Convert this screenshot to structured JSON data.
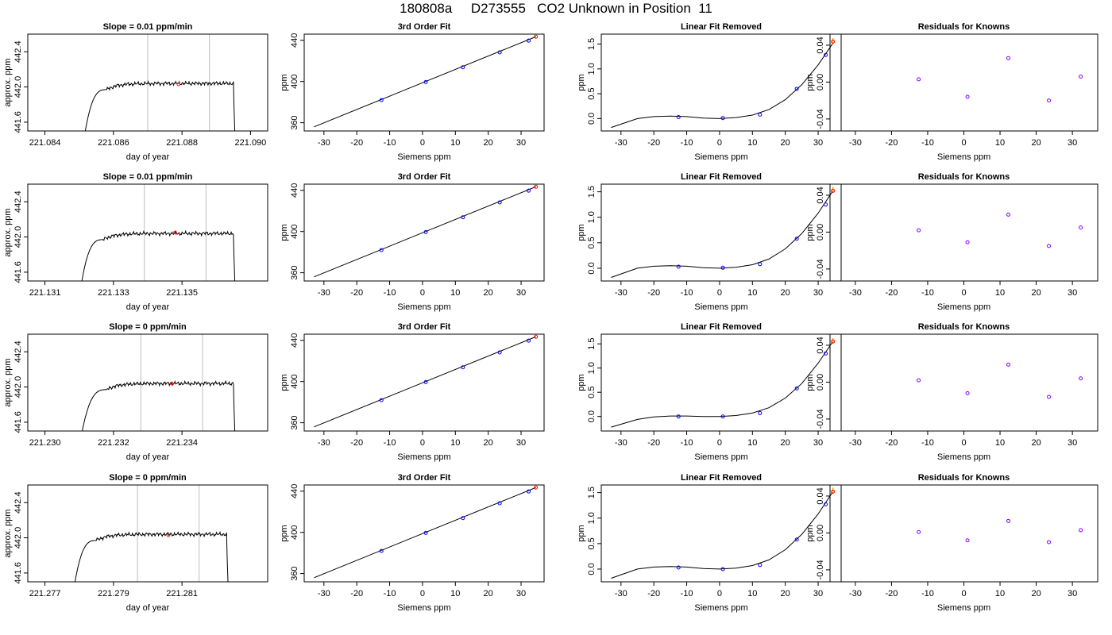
{
  "figure": {
    "title": "180808a     D273555   CO2 Unknown in Position  11"
  },
  "colors": {
    "known_point": "#0000ff",
    "unknown_point": "#ff0000",
    "range_point": "#ffa500",
    "residual_point": "#8000ff",
    "vline": "#bebebe",
    "line": "#000000"
  },
  "chart_data": [
    {
      "type": "line",
      "title": "Slope =  0.01  ppm/min",
      "xlabel": "day of year",
      "ylabel": "approx. ppm",
      "xlim": [
        221.0835,
        221.0905
      ],
      "ylim": [
        441.5,
        442.6
      ],
      "xticks": [
        221.084,
        221.086,
        221.088,
        221.09
      ],
      "xticklabels": [
        "221.084",
        "221.086",
        "221.088",
        "221.090"
      ],
      "yticks": [
        441.6,
        442.0,
        442.4
      ],
      "yticklabels": [
        "441.6",
        "442.0",
        "442.4"
      ],
      "trace": {
        "start": 221.0851,
        "rise_end": 221.0858,
        "end": 221.0895,
        "level": 442.04,
        "base": 441.3
      },
      "vlines": [
        221.087,
        221.0888
      ],
      "mean_point": {
        "x": 221.0879,
        "y": 442.03
      }
    },
    {
      "type": "scatter",
      "title": "3rd Order Fit",
      "xlabel": "Siemens ppm",
      "ylabel": "ppm",
      "xlim": [
        -36,
        37
      ],
      "ylim": [
        352,
        446
      ],
      "xticks": [
        -30,
        -20,
        -10,
        0,
        10,
        20,
        30
      ],
      "xticklabels": [
        "-30",
        "-20",
        "-10",
        "0",
        "10",
        "20",
        "30"
      ],
      "yticks": [
        360,
        400,
        440
      ],
      "yticklabels": [
        "360",
        "400",
        "440"
      ],
      "fit": {
        "x0": -33,
        "x1": 34.5,
        "y0": 356,
        "y1": 443.5
      },
      "known": {
        "x": [
          -12.5,
          1,
          12.3,
          23.5,
          32.3
        ],
        "y": [
          382,
          399.5,
          413.8,
          428.3,
          439.7
        ]
      },
      "unknown": {
        "x": [
          34.5
        ],
        "y": [
          443.5
        ]
      }
    },
    {
      "type": "scatter",
      "title": "Linear Fit Removed",
      "xlabel": "Siemens ppm",
      "ylabel": "ppm",
      "xlim": [
        -36,
        37
      ],
      "ylim": [
        -0.25,
        1.7
      ],
      "xticks": [
        -30,
        -20,
        -10,
        0,
        10,
        20,
        30
      ],
      "xticklabels": [
        "-30",
        "-20",
        "-10",
        "0",
        "10",
        "20",
        "30"
      ],
      "yticks": [
        0,
        0.5,
        1.0,
        1.5
      ],
      "yticklabels": [
        "0.0",
        "0.5",
        "1.0",
        "1.5"
      ],
      "curve": {
        "x": [
          -33,
          -25,
          -20,
          -15,
          -10,
          -5,
          0,
          5,
          10,
          15,
          20,
          25,
          30,
          34.5
        ],
        "y": [
          -0.18,
          0.0,
          0.04,
          0.05,
          0.04,
          0.01,
          0.0,
          0.02,
          0.07,
          0.18,
          0.38,
          0.68,
          1.08,
          1.52
        ]
      },
      "known": {
        "x": [
          -12.5,
          1,
          12.3,
          23.5,
          32.3
        ],
        "y": [
          0.03,
          0.01,
          0.08,
          0.6,
          1.28
        ]
      },
      "unknown": {
        "x": [
          34.5
        ],
        "y": [
          1.55
        ]
      },
      "unknown_range": {
        "x": 34.5,
        "y0": 1.5,
        "y1": 1.62
      }
    },
    {
      "type": "scatter",
      "title": "Residuals for Knowns",
      "xlabel": "Siemens ppm",
      "ylabel": "ppm",
      "xlim": [
        -37,
        37
      ],
      "ylim": [
        -0.053,
        0.052
      ],
      "xticks": [
        -30,
        -20,
        -10,
        0,
        10,
        20,
        30
      ],
      "xticklabels": [
        "-30",
        "-20",
        "-10",
        "0",
        "10",
        "20",
        "30"
      ],
      "yticks": [
        -0.04,
        0,
        0.04
      ],
      "yticklabels": [
        "-0.04",
        "0.00",
        "0.04"
      ],
      "known": {
        "x": [
          -12.5,
          1,
          12.3,
          23.5,
          32.3
        ],
        "y": [
          0.003,
          -0.016,
          0.026,
          -0.02,
          0.006
        ]
      }
    },
    {
      "type": "line",
      "title": "Slope =  0.01  ppm/min",
      "xlabel": "day of year",
      "ylabel": "approx. ppm",
      "xlim": [
        221.1305,
        221.1375
      ],
      "ylim": [
        441.5,
        442.6
      ],
      "xticks": [
        221.131,
        221.133,
        221.135
      ],
      "xticklabels": [
        "221.131",
        "221.133",
        "221.135"
      ],
      "yticks": [
        441.6,
        442.0,
        442.4
      ],
      "yticklabels": [
        "441.6",
        "442.0",
        "442.4"
      ],
      "trace": {
        "start": 221.132,
        "rise_end": 221.1327,
        "end": 221.1365,
        "level": 442.04,
        "base": 441.3
      },
      "vlines": [
        221.1339,
        221.1357
      ],
      "mean_point": {
        "x": 221.1348,
        "y": 442.05
      }
    },
    {
      "type": "scatter",
      "title": "3rd Order Fit",
      "xlabel": "Siemens ppm",
      "ylabel": "ppm",
      "xlim": [
        -36,
        37
      ],
      "ylim": [
        352,
        446
      ],
      "xticks": [
        -30,
        -20,
        -10,
        0,
        10,
        20,
        30
      ],
      "xticklabels": [
        "-30",
        "-20",
        "-10",
        "0",
        "10",
        "20",
        "30"
      ],
      "yticks": [
        360,
        400,
        440
      ],
      "yticklabels": [
        "360",
        "400",
        "440"
      ],
      "fit": {
        "x0": -33,
        "x1": 34.5,
        "y0": 356,
        "y1": 443.5
      },
      "known": {
        "x": [
          -12.5,
          1,
          12.3,
          23.5,
          32.3
        ],
        "y": [
          382,
          399.5,
          413.8,
          428.3,
          439.7
        ]
      },
      "unknown": {
        "x": [
          34.5
        ],
        "y": [
          443.5
        ]
      }
    },
    {
      "type": "scatter",
      "title": "Linear Fit Removed",
      "xlabel": "Siemens ppm",
      "ylabel": "ppm",
      "xlim": [
        -36,
        37
      ],
      "ylim": [
        -0.25,
        1.65
      ],
      "xticks": [
        -30,
        -20,
        -10,
        0,
        10,
        20,
        30
      ],
      "xticklabels": [
        "-30",
        "-20",
        "-10",
        "0",
        "10",
        "20",
        "30"
      ],
      "yticks": [
        0,
        0.5,
        1.0,
        1.5
      ],
      "yticklabels": [
        "0.0",
        "0.5",
        "1.0",
        "1.5"
      ],
      "curve": {
        "x": [
          -33,
          -25,
          -20,
          -15,
          -10,
          -5,
          0,
          5,
          10,
          15,
          20,
          25,
          30,
          34.5
        ],
        "y": [
          -0.18,
          0.0,
          0.04,
          0.05,
          0.04,
          0.01,
          0.0,
          0.02,
          0.07,
          0.18,
          0.38,
          0.68,
          1.08,
          1.52
        ]
      },
      "known": {
        "x": [
          -12.5,
          1,
          12.3,
          23.5,
          32.3
        ],
        "y": [
          0.03,
          0.01,
          0.08,
          0.58,
          1.25
        ]
      },
      "unknown": {
        "x": [
          34.5
        ],
        "y": [
          1.52
        ]
      },
      "unknown_range": {
        "x": 34.5,
        "y0": 1.48,
        "y1": 1.6
      }
    },
    {
      "type": "scatter",
      "title": "Residuals for Knowns",
      "xlabel": "Siemens ppm",
      "ylabel": "ppm",
      "xlim": [
        -37,
        37
      ],
      "ylim": [
        -0.053,
        0.052
      ],
      "xticks": [
        -30,
        -20,
        -10,
        0,
        10,
        20,
        30
      ],
      "xticklabels": [
        "-30",
        "-20",
        "-10",
        "0",
        "10",
        "20",
        "30"
      ],
      "yticks": [
        -0.04,
        0,
        0.04
      ],
      "yticklabels": [
        "-0.04",
        "0.00",
        "0.04"
      ],
      "known": {
        "x": [
          -12.5,
          1,
          12.3,
          23.5,
          32.3
        ],
        "y": [
          0.002,
          -0.011,
          0.019,
          -0.015,
          0.005
        ]
      }
    },
    {
      "type": "line",
      "title": "Slope =  0  ppm/min",
      "xlabel": "day of year",
      "ylabel": "approx. ppm",
      "xlim": [
        221.2295,
        221.2365
      ],
      "ylim": [
        441.5,
        442.6
      ],
      "xticks": [
        221.23,
        221.232,
        221.234
      ],
      "xticklabels": [
        "221.230",
        "221.232",
        "221.234"
      ],
      "yticks": [
        441.6,
        442.0,
        442.4
      ],
      "yticklabels": [
        "441.6",
        "442.0",
        "442.4"
      ],
      "trace": {
        "start": 221.231,
        "rise_end": 221.2318,
        "end": 221.2355,
        "level": 442.04,
        "base": 441.3
      },
      "vlines": [
        221.2328,
        221.2346
      ],
      "mean_point": {
        "x": 221.2337,
        "y": 442.04
      }
    },
    {
      "type": "scatter",
      "title": "3rd Order Fit",
      "xlabel": "Siemens ppm",
      "ylabel": "ppm",
      "xlim": [
        -36,
        37
      ],
      "ylim": [
        352,
        446
      ],
      "xticks": [
        -30,
        -20,
        -10,
        0,
        10,
        20,
        30
      ],
      "xticklabels": [
        "-30",
        "-20",
        "-10",
        "0",
        "10",
        "20",
        "30"
      ],
      "yticks": [
        360,
        400,
        440
      ],
      "yticklabels": [
        "360",
        "400",
        "440"
      ],
      "fit": {
        "x0": -33,
        "x1": 34.5,
        "y0": 356,
        "y1": 443.5
      },
      "known": {
        "x": [
          -12.5,
          1,
          12.3,
          23.5,
          32.3
        ],
        "y": [
          382,
          399.5,
          413.8,
          428.3,
          439.7
        ]
      },
      "unknown": {
        "x": [
          34.5
        ],
        "y": [
          443.5
        ]
      }
    },
    {
      "type": "scatter",
      "title": "Linear Fit Removed",
      "xlabel": "Siemens ppm",
      "ylabel": "ppm",
      "xlim": [
        -36,
        37
      ],
      "ylim": [
        -0.3,
        1.7
      ],
      "xticks": [
        -30,
        -20,
        -10,
        0,
        10,
        20,
        30
      ],
      "xticklabels": [
        "-30",
        "-20",
        "-10",
        "0",
        "10",
        "20",
        "30"
      ],
      "yticks": [
        0,
        0.5,
        1.0,
        1.5
      ],
      "yticklabels": [
        "0.0",
        "0.5",
        "1.0",
        "1.5"
      ],
      "curve": {
        "x": [
          -33,
          -25,
          -20,
          -15,
          -10,
          -5,
          0,
          5,
          10,
          15,
          20,
          25,
          30,
          34.5
        ],
        "y": [
          -0.22,
          -0.06,
          -0.01,
          0.01,
          0.01,
          0.0,
          0.0,
          0.02,
          0.07,
          0.18,
          0.38,
          0.68,
          1.1,
          1.55
        ]
      },
      "known": {
        "x": [
          -12.5,
          1,
          12.3,
          23.5,
          32.3
        ],
        "y": [
          0.0,
          0.0,
          0.07,
          0.58,
          1.3
        ]
      },
      "unknown": {
        "x": [
          34.5
        ],
        "y": [
          1.55
        ]
      },
      "unknown_range": {
        "x": 34.5,
        "y0": 1.5,
        "y1": 1.62
      }
    },
    {
      "type": "scatter",
      "title": "Residuals for Knowns",
      "xlabel": "Siemens ppm",
      "ylabel": "ppm",
      "xlim": [
        -37,
        37
      ],
      "ylim": [
        -0.053,
        0.052
      ],
      "xticks": [
        -30,
        -20,
        -10,
        0,
        10,
        20,
        30
      ],
      "xticklabels": [
        "-30",
        "-20",
        "-10",
        "0",
        "10",
        "20",
        "30"
      ],
      "yticks": [
        -0.04,
        0,
        0.04
      ],
      "yticklabels": [
        "-0.04",
        "0.00",
        "0.04"
      ],
      "known": {
        "x": [
          -12.5,
          1,
          12.3,
          23.5,
          32.3
        ],
        "y": [
          0.002,
          -0.012,
          0.019,
          -0.016,
          0.004
        ]
      }
    },
    {
      "type": "line",
      "title": "Slope =  0  ppm/min",
      "xlabel": "day of year",
      "ylabel": "approx. ppm",
      "xlim": [
        221.2765,
        221.2835
      ],
      "ylim": [
        441.5,
        442.6
      ],
      "xticks": [
        221.277,
        221.279,
        221.281
      ],
      "xticklabels": [
        "221.277",
        "221.279",
        "221.281"
      ],
      "yticks": [
        441.6,
        442.0,
        442.4
      ],
      "yticklabels": [
        "441.6",
        "442.0",
        "442.4"
      ],
      "trace": {
        "start": 221.2778,
        "rise_end": 221.2785,
        "end": 221.2823,
        "level": 442.04,
        "base": 441.3
      },
      "vlines": [
        221.2797,
        221.2815
      ],
      "mean_point": {
        "x": 221.2806,
        "y": 442.03
      }
    },
    {
      "type": "scatter",
      "title": "3rd Order Fit",
      "xlabel": "Siemens ppm",
      "ylabel": "ppm",
      "xlim": [
        -36,
        37
      ],
      "ylim": [
        352,
        446
      ],
      "xticks": [
        -30,
        -20,
        -10,
        0,
        10,
        20,
        30
      ],
      "xticklabels": [
        "-30",
        "-20",
        "-10",
        "0",
        "10",
        "20",
        "30"
      ],
      "yticks": [
        360,
        400,
        440
      ],
      "yticklabels": [
        "360",
        "400",
        "440"
      ],
      "fit": {
        "x0": -33,
        "x1": 34.5,
        "y0": 356,
        "y1": 443.5
      },
      "known": {
        "x": [
          -12.5,
          1,
          12.3,
          23.5,
          32.3
        ],
        "y": [
          382,
          399.5,
          413.8,
          428.3,
          439.7
        ]
      },
      "unknown": {
        "x": [
          34.5
        ],
        "y": [
          443.5
        ]
      }
    },
    {
      "type": "scatter",
      "title": "Linear Fit Removed",
      "xlabel": "Siemens ppm",
      "ylabel": "ppm",
      "xlim": [
        -36,
        37
      ],
      "ylim": [
        -0.25,
        1.65
      ],
      "xticks": [
        -30,
        -20,
        -10,
        0,
        10,
        20,
        30
      ],
      "xticklabels": [
        "-30",
        "-20",
        "-10",
        "0",
        "10",
        "20",
        "30"
      ],
      "yticks": [
        0,
        0.5,
        1.0,
        1.5
      ],
      "yticklabels": [
        "0.0",
        "0.5",
        "1.0",
        "1.5"
      ],
      "curve": {
        "x": [
          -33,
          -25,
          -20,
          -15,
          -10,
          -5,
          0,
          5,
          10,
          15,
          20,
          25,
          30,
          34.5
        ],
        "y": [
          -0.18,
          0.0,
          0.04,
          0.05,
          0.04,
          0.01,
          0.0,
          0.02,
          0.07,
          0.18,
          0.38,
          0.68,
          1.08,
          1.52
        ]
      },
      "known": {
        "x": [
          -12.5,
          1,
          12.3,
          23.5,
          32.3
        ],
        "y": [
          0.03,
          0.0,
          0.08,
          0.58,
          1.27
        ]
      },
      "unknown": {
        "x": [
          34.5
        ],
        "y": [
          1.52
        ]
      },
      "unknown_range": {
        "x": 34.5,
        "y0": 1.48,
        "y1": 1.6
      }
    },
    {
      "type": "scatter",
      "title": "Residuals for Knowns",
      "xlabel": "Siemens ppm",
      "ylabel": "ppm",
      "xlim": [
        -37,
        37
      ],
      "ylim": [
        -0.053,
        0.052
      ],
      "xticks": [
        -30,
        -20,
        -10,
        0,
        10,
        20,
        30
      ],
      "xticklabels": [
        "-30",
        "-20",
        "-10",
        "0",
        "10",
        "20",
        "30"
      ],
      "yticks": [
        -0.04,
        0,
        0.04
      ],
      "yticklabels": [
        "-0.04",
        "0.00",
        "0.04"
      ],
      "known": {
        "x": [
          -12.5,
          1,
          12.3,
          23.5,
          32.3
        ],
        "y": [
          0.001,
          -0.008,
          0.013,
          -0.01,
          0.003
        ]
      }
    }
  ]
}
